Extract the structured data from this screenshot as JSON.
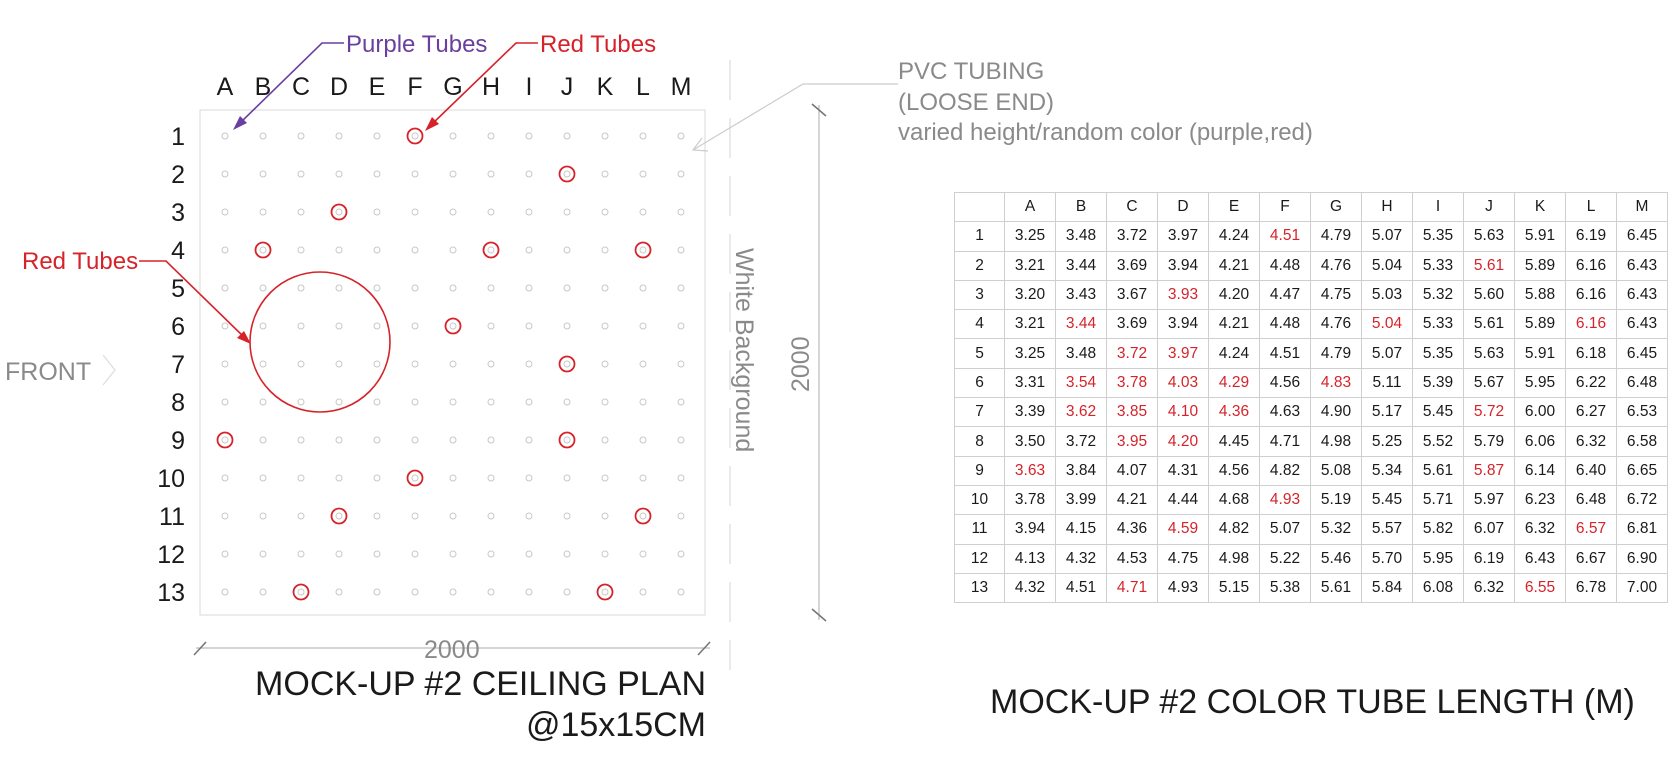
{
  "plan": {
    "columns": [
      "A",
      "B",
      "C",
      "D",
      "E",
      "F",
      "G",
      "H",
      "I",
      "J",
      "K",
      "L",
      "M"
    ],
    "rows": [
      "1",
      "2",
      "3",
      "4",
      "5",
      "6",
      "7",
      "8",
      "9",
      "10",
      "11",
      "12",
      "13"
    ],
    "red_tubes": [
      {
        "col": "F",
        "row": "1"
      },
      {
        "col": "J",
        "row": "2"
      },
      {
        "col": "D",
        "row": "3"
      },
      {
        "col": "B",
        "row": "4"
      },
      {
        "col": "H",
        "row": "4"
      },
      {
        "col": "L",
        "row": "4"
      },
      {
        "col": "G",
        "row": "6"
      },
      {
        "col": "J",
        "row": "7"
      },
      {
        "col": "A",
        "row": "9"
      },
      {
        "col": "J",
        "row": "9"
      },
      {
        "col": "F",
        "row": "10"
      },
      {
        "col": "D",
        "row": "11"
      },
      {
        "col": "L",
        "row": "11"
      },
      {
        "col": "C",
        "row": "13"
      },
      {
        "col": "K",
        "row": "13"
      }
    ],
    "big_circle_center": {
      "col": "C.5",
      "row": "6.5"
    },
    "labels": {
      "purple_tubes": "Purple Tubes",
      "red_tubes_top": "Red Tubes",
      "red_tubes_left": "Red Tubes",
      "front": "FRONT",
      "white_background": "White Background",
      "dim_horizontal": "2000",
      "dim_vertical": "2000",
      "pvc_line1": "PVC TUBING",
      "pvc_line2": "(LOOSE END)",
      "pvc_line3": "varied height/random color (purple,red)"
    },
    "title_line1": "MOCK-UP #2 CEILING PLAN",
    "title_line2": "@15x15CM"
  },
  "table": {
    "title": "MOCK-UP #2 COLOR TUBE LENGTH (M)",
    "columns": [
      "A",
      "B",
      "C",
      "D",
      "E",
      "F",
      "G",
      "H",
      "I",
      "J",
      "K",
      "L",
      "M"
    ],
    "rows": [
      {
        "row": "1",
        "values": [
          "3.25",
          "3.48",
          "3.72",
          "3.97",
          "4.24",
          "4.51",
          "4.79",
          "5.07",
          "5.35",
          "5.63",
          "5.91",
          "6.19",
          "6.45"
        ],
        "red": [
          5
        ]
      },
      {
        "row": "2",
        "values": [
          "3.21",
          "3.44",
          "3.69",
          "3.94",
          "4.21",
          "4.48",
          "4.76",
          "5.04",
          "5.33",
          "5.61",
          "5.89",
          "6.16",
          "6.43"
        ],
        "red": [
          9
        ]
      },
      {
        "row": "3",
        "values": [
          "3.20",
          "3.43",
          "3.67",
          "3.93",
          "4.20",
          "4.47",
          "4.75",
          "5.03",
          "5.32",
          "5.60",
          "5.88",
          "6.16",
          "6.43"
        ],
        "red": [
          3
        ]
      },
      {
        "row": "4",
        "values": [
          "3.21",
          "3.44",
          "3.69",
          "3.94",
          "4.21",
          "4.48",
          "4.76",
          "5.04",
          "5.33",
          "5.61",
          "5.89",
          "6.16",
          "6.43"
        ],
        "red": [
          1,
          7,
          11
        ]
      },
      {
        "row": "5",
        "values": [
          "3.25",
          "3.48",
          "3.72",
          "3.97",
          "4.24",
          "4.51",
          "4.79",
          "5.07",
          "5.35",
          "5.63",
          "5.91",
          "6.18",
          "6.45"
        ],
        "red": [
          2,
          3
        ]
      },
      {
        "row": "6",
        "values": [
          "3.31",
          "3.54",
          "3.78",
          "4.03",
          "4.29",
          "4.56",
          "4.83",
          "5.11",
          "5.39",
          "5.67",
          "5.95",
          "6.22",
          "6.48"
        ],
        "red": [
          1,
          2,
          3,
          4,
          6
        ]
      },
      {
        "row": "7",
        "values": [
          "3.39",
          "3.62",
          "3.85",
          "4.10",
          "4.36",
          "4.63",
          "4.90",
          "5.17",
          "5.45",
          "5.72",
          "6.00",
          "6.27",
          "6.53"
        ],
        "red": [
          1,
          2,
          3,
          4,
          9
        ]
      },
      {
        "row": "8",
        "values": [
          "3.50",
          "3.72",
          "3.95",
          "4.20",
          "4.45",
          "4.71",
          "4.98",
          "5.25",
          "5.52",
          "5.79",
          "6.06",
          "6.32",
          "6.58"
        ],
        "red": [
          2,
          3
        ]
      },
      {
        "row": "9",
        "values": [
          "3.63",
          "3.84",
          "4.07",
          "4.31",
          "4.56",
          "4.82",
          "5.08",
          "5.34",
          "5.61",
          "5.87",
          "6.14",
          "6.40",
          "6.65"
        ],
        "red": [
          0,
          9
        ]
      },
      {
        "row": "10",
        "values": [
          "3.78",
          "3.99",
          "4.21",
          "4.44",
          "4.68",
          "4.93",
          "5.19",
          "5.45",
          "5.71",
          "5.97",
          "6.23",
          "6.48",
          "6.72"
        ],
        "red": [
          5
        ]
      },
      {
        "row": "11",
        "values": [
          "3.94",
          "4.15",
          "4.36",
          "4.59",
          "4.82",
          "5.07",
          "5.32",
          "5.57",
          "5.82",
          "6.07",
          "6.32",
          "6.57",
          "6.81"
        ],
        "red": [
          3,
          11
        ]
      },
      {
        "row": "12",
        "values": [
          "4.13",
          "4.32",
          "4.53",
          "4.75",
          "4.98",
          "5.22",
          "5.46",
          "5.70",
          "5.95",
          "6.19",
          "6.43",
          "6.67",
          "6.90"
        ],
        "red": []
      },
      {
        "row": "13",
        "values": [
          "4.32",
          "4.51",
          "4.71",
          "4.93",
          "5.15",
          "5.38",
          "5.61",
          "5.84",
          "6.08",
          "6.32",
          "6.55",
          "6.78",
          "7.00"
        ],
        "red": [
          2,
          10
        ]
      }
    ]
  },
  "colors": {
    "red": "#d6232a",
    "purple": "#6a3fa0",
    "gray": "#8a8a8a",
    "grid_dot": "#c8c8c8"
  }
}
